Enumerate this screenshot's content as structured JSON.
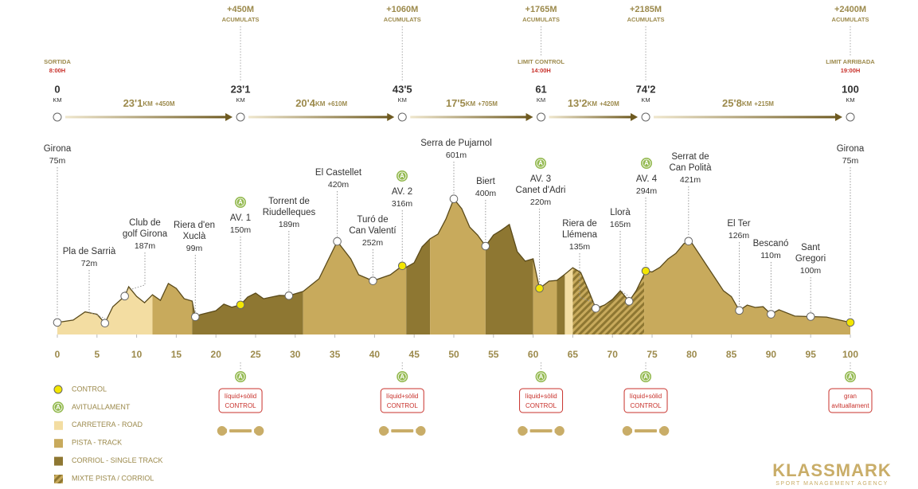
{
  "chart_data": {
    "type": "area",
    "x": [
      0,
      2,
      3.5,
      5,
      6,
      7,
      8.5,
      9,
      10,
      11,
      12,
      13,
      14,
      15,
      16,
      17,
      17.4,
      18,
      20,
      21,
      22,
      23.1,
      24,
      25,
      26,
      27,
      28,
      29.2,
      31,
      33,
      35.3,
      37,
      38,
      39.8,
      42,
      43.5,
      44,
      45,
      46,
      47,
      48,
      49,
      50,
      51,
      52,
      53,
      54,
      55,
      56,
      57,
      58,
      59,
      60,
      60.8,
      62,
      63,
      64,
      65,
      66,
      67,
      67.9,
      69,
      70,
      71,
      72.1,
      73,
      74.2,
      75,
      76,
      77,
      78,
      79,
      79.6,
      80,
      81,
      82,
      83,
      84,
      85,
      86,
      87,
      88,
      89,
      90,
      91,
      93,
      95,
      97,
      100
    ],
    "values": [
      75,
      85,
      120,
      110,
      72,
      142,
      187,
      227,
      186,
      159,
      193,
      169,
      241,
      220,
      176,
      166,
      99,
      108,
      125,
      153,
      140,
      150,
      183,
      200,
      176,
      183,
      190,
      189,
      207,
      261,
      420,
      346,
      278,
      252,
      278,
      316,
      310,
      329,
      397,
      431,
      451,
      515,
      601,
      559,
      481,
      447,
      400,
      447,
      468,
      492,
      376,
      336,
      346,
      220,
      251,
      254,
      280,
      308,
      288,
      210,
      135,
      149,
      173,
      210,
      165,
      210,
      294,
      290,
      310,
      345,
      369,
      410,
      421,
      414,
      363,
      312,
      261,
      210,
      185,
      126,
      149,
      139,
      142,
      110,
      129,
      102,
      100,
      98,
      75
    ],
    "xlim": [
      0,
      100
    ],
    "xticks": [
      0,
      5,
      10,
      15,
      20,
      25,
      30,
      35,
      40,
      45,
      50,
      55,
      60,
      65,
      70,
      75,
      80,
      85,
      90,
      95,
      100
    ],
    "surfaces": [
      {
        "from": 0,
        "to": 12,
        "surface": 2
      },
      {
        "from": 12,
        "to": 17,
        "surface": 3
      },
      {
        "from": 17,
        "to": 31,
        "surface": 4
      },
      {
        "from": 31,
        "to": 44,
        "surface": 3
      },
      {
        "from": 44,
        "to": 47,
        "surface": 4
      },
      {
        "from": 47,
        "to": 54,
        "surface": 3
      },
      {
        "from": 54,
        "to": 60,
        "surface": 4
      },
      {
        "from": 60,
        "to": 63,
        "surface": 3
      },
      {
        "from": 63,
        "to": 64,
        "surface": 4
      },
      {
        "from": 64,
        "to": 65,
        "surface": 2
      },
      {
        "from": 65,
        "to": 74,
        "surface": 5
      },
      {
        "from": 74,
        "to": 100,
        "surface": 3
      }
    ],
    "waypoints": [
      {
        "km": 0,
        "name": [
          "Girona"
        ],
        "elevation": 75,
        "label": "75m",
        "control": false
      },
      {
        "km": 6,
        "name": [
          "Pla de Sarrià"
        ],
        "elevation": 72,
        "label": "72m",
        "control": false
      },
      {
        "km": 8.5,
        "name": [
          "Club de",
          "golf Girona"
        ],
        "elevation": 187,
        "label": "187m",
        "control": false
      },
      {
        "km": 17.4,
        "name": [
          "Riera d'en",
          "Xuclà"
        ],
        "elevation": 99,
        "label": "99m",
        "control": false
      },
      {
        "km": 23.1,
        "name": [
          "AV. 1"
        ],
        "elevation": 150,
        "label": "150m",
        "control": true
      },
      {
        "km": 29.2,
        "name": [
          "Torrent de",
          "Riudelleques"
        ],
        "elevation": 189,
        "label": "189m",
        "control": false
      },
      {
        "km": 35.3,
        "name": [
          "El Castellet"
        ],
        "elevation": 420,
        "label": "420m",
        "control": false
      },
      {
        "km": 39.8,
        "name": [
          "Turó de",
          "Can Valentí"
        ],
        "elevation": 252,
        "label": "252m",
        "control": false
      },
      {
        "km": 43.5,
        "name": [
          "AV. 2"
        ],
        "elevation": 316,
        "label": "316m",
        "control": true
      },
      {
        "km": 50,
        "name": [
          "Serra de Pujarnol"
        ],
        "elevation": 601,
        "label": "601m",
        "control": false
      },
      {
        "km": 54,
        "name": [
          "Biert"
        ],
        "elevation": 400,
        "label": "400m",
        "control": false
      },
      {
        "km": 60.8,
        "name": [
          "AV. 3",
          "Canet d'Adri"
        ],
        "elevation": 220,
        "label": "220m",
        "control": true
      },
      {
        "km": 67.9,
        "name": [
          "Riera de",
          "Llémena"
        ],
        "elevation": 135,
        "label": "135m",
        "control": false
      },
      {
        "km": 72.1,
        "name": [
          "Llorà"
        ],
        "elevation": 165,
        "label": "165m",
        "control": false
      },
      {
        "km": 74.2,
        "name": [
          "AV. 4"
        ],
        "elevation": 294,
        "label": "294m",
        "control": true
      },
      {
        "km": 79.6,
        "name": [
          "Serrat de",
          "Can Polità"
        ],
        "elevation": 421,
        "label": "421m",
        "control": false
      },
      {
        "km": 86,
        "name": [
          "El Ter"
        ],
        "elevation": 126,
        "label": "126m",
        "control": false
      },
      {
        "km": 90,
        "name": [
          "Bescanó"
        ],
        "elevation": 110,
        "label": "110m",
        "control": false
      },
      {
        "km": 95,
        "name": [
          "Sant",
          "Gregori"
        ],
        "elevation": 100,
        "label": "100m",
        "control": false
      },
      {
        "km": 100,
        "name": [
          "Girona"
        ],
        "elevation": 75,
        "label": "75m",
        "control": true
      }
    ]
  },
  "km_markers": [
    {
      "km": 0,
      "label": "0",
      "unit": "KM",
      "note": [
        "SORTIDA",
        "8:00H"
      ]
    },
    {
      "km": 23.1,
      "label": "23'1",
      "unit": "KM",
      "total": [
        "+450M",
        "ACUMULATS"
      ]
    },
    {
      "km": 43.5,
      "label": "43'5",
      "unit": "KM",
      "total": [
        "+1060M",
        "ACUMULATS"
      ]
    },
    {
      "km": 61,
      "label": "61",
      "unit": "KM",
      "note": [
        "LIMIT CONTROL",
        "14:00H"
      ],
      "total": [
        "+1765M",
        "ACUMULATS"
      ]
    },
    {
      "km": 74.2,
      "label": "74'2",
      "unit": "KM",
      "total": [
        "+2185M",
        "ACUMULATS"
      ]
    },
    {
      "km": 100,
      "label": "100",
      "unit": "KM",
      "note": [
        "LIMIT ARRIBADA",
        "19:00H"
      ],
      "total": [
        "+2400M",
        "ACUMULATS"
      ]
    }
  ],
  "legs": [
    {
      "distance": "23'1",
      "unit": "KM",
      "gain": "+450M"
    },
    {
      "distance": "20'4",
      "unit": "KM",
      "gain": "+610M"
    },
    {
      "distance": "17'5",
      "unit": "KM",
      "gain": "+705M"
    },
    {
      "distance": "13'2",
      "unit": "KM",
      "gain": "+420M"
    },
    {
      "distance": "25'8",
      "unit": "KM",
      "gain": "+215M"
    }
  ],
  "aid_icon": "A",
  "aid_stations": [
    {
      "km": 23.1,
      "text": [
        "líquid+sòlid",
        "CONTROL"
      ],
      "tools": true
    },
    {
      "km": 43.5,
      "text": [
        "líquid+sòlid",
        "CONTROL"
      ],
      "tools": true
    },
    {
      "km": 61,
      "text": [
        "líquid+sòlid",
        "CONTROL"
      ],
      "tools": true
    },
    {
      "km": 74.2,
      "text": [
        "líquid+sòlid",
        "CONTROL"
      ],
      "tools": true
    },
    {
      "km": 100,
      "text": [
        "gran",
        "avituallament"
      ],
      "tools": false
    }
  ],
  "legend": [
    {
      "label": "CONTROL",
      "color": "#f3e600"
    },
    {
      "label": "AVITUALLAMENT",
      "color": "#93b94f"
    },
    {
      "label": "CARRETERA - ROAD",
      "color": "#f3dda2"
    },
    {
      "label": "PISTA - TRACK",
      "color": "#c8aa5c"
    },
    {
      "label": "CORRIOL - SINGLE TRACK",
      "color": "#8e7732"
    },
    {
      "label": "MIXTE PISTA / CORRIOL",
      "color": "#8e7732",
      "hatch": true
    }
  ],
  "brand": {
    "name": "KLASSMARK",
    "tagline": "SPORT MANAGEMENT AGENCY"
  }
}
